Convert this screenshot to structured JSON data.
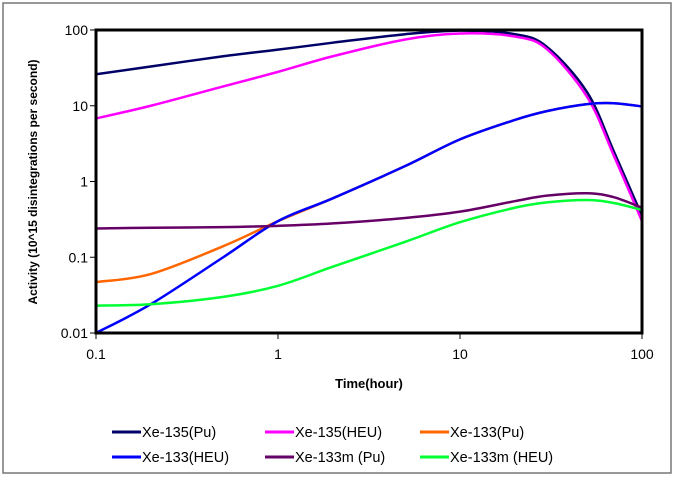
{
  "chart_data": {
    "type": "line",
    "title": "",
    "xlabel": "Time(hour)",
    "ylabel": "Activity (10^15 disintegrations per second)",
    "xscale": "log",
    "yscale": "log",
    "xlim": [
      0.1,
      100
    ],
    "ylim": [
      0.01,
      100
    ],
    "xticks": [
      {
        "value": 0.1,
        "label": "0.1"
      },
      {
        "value": 1,
        "label": "1"
      },
      {
        "value": 10,
        "label": "10"
      },
      {
        "value": 100,
        "label": "100"
      }
    ],
    "yticks": [
      {
        "value": 0.01,
        "label": "0.01"
      },
      {
        "value": 0.1,
        "label": "0.1"
      },
      {
        "value": 1,
        "label": "1"
      },
      {
        "value": 10,
        "label": "10"
      },
      {
        "value": 100,
        "label": "100"
      }
    ],
    "grid": false,
    "legend_position": "bottom",
    "x": [
      0.1,
      0.2,
      0.5,
      1,
      2,
      5,
      10,
      20,
      30,
      50,
      70,
      100
    ],
    "series": [
      {
        "name": "Xe-135(Pu)",
        "color": "#000066",
        "values": [
          26,
          33,
          45,
          55,
          68,
          88,
          98,
          88,
          60,
          15,
          2.5,
          0.35
        ]
      },
      {
        "name": "Xe-135(HEU)",
        "color": "#ff00ff",
        "values": [
          6.8,
          10,
          18,
          28,
          45,
          75,
          90,
          82,
          56,
          13,
          2.2,
          0.3
        ]
      },
      {
        "name": "Xe-133(Pu)",
        "color": "#ff6600",
        "values": [
          0.047,
          0.06,
          0.14,
          0.3,
          0.6,
          1.6,
          3.6,
          6.5,
          8.5,
          10.5,
          10.8,
          9.8
        ]
      },
      {
        "name": "Xe-133(HEU)",
        "color": "#0000ff",
        "values": [
          0.01,
          0.024,
          0.1,
          0.3,
          0.6,
          1.6,
          3.6,
          6.5,
          8.5,
          10.5,
          10.8,
          9.8
        ]
      },
      {
        "name": "Xe-133m (Pu)",
        "color": "#660066",
        "values": [
          0.24,
          0.245,
          0.25,
          0.26,
          0.28,
          0.33,
          0.4,
          0.55,
          0.65,
          0.7,
          0.62,
          0.45
        ]
      },
      {
        "name": "Xe-133m (HEU)",
        "color": "#00ff33",
        "values": [
          0.023,
          0.024,
          0.03,
          0.042,
          0.075,
          0.16,
          0.29,
          0.45,
          0.53,
          0.57,
          0.52,
          0.42
        ]
      }
    ]
  }
}
